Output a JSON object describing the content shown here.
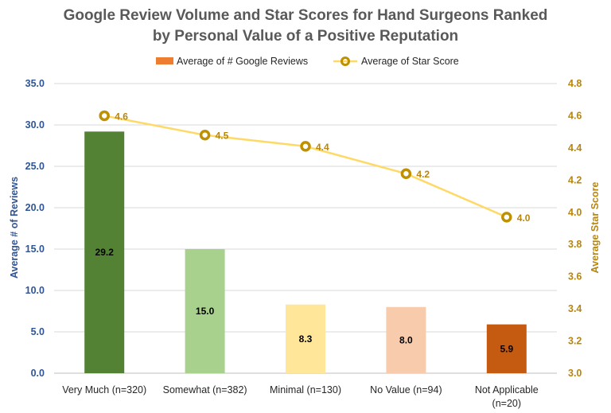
{
  "chart_data": {
    "type": "bar",
    "title": [
      "Google Review Volume and Star Scores for Hand Surgeons Ranked",
      "by Personal Value of a Positive Reputation"
    ],
    "categories": [
      [
        "Very Much (n=320)"
      ],
      [
        "Somewhat (n=382)"
      ],
      [
        "Minimal (n=130)"
      ],
      [
        "No Value (n=94)"
      ],
      [
        "Not Applicable",
        "(n=20)"
      ]
    ],
    "bar_colors": [
      "#548235",
      "#a9d18e",
      "#ffe699",
      "#f8cbad",
      "#c55a11"
    ],
    "legend_bar_color": "#ed7d31",
    "line_color": "#ffd966",
    "marker_color": "#bf9000",
    "left_axis_color": "#2f5597",
    "right_axis_color": "#b8860b",
    "series": [
      {
        "name": "Average of # Google Reviews",
        "type": "bar",
        "axis": "left",
        "values": [
          29.2,
          15.0,
          8.3,
          8.0,
          5.9
        ],
        "labels": [
          "29.2",
          "15.0",
          "8.3",
          "8.0",
          "5.9"
        ]
      },
      {
        "name": "Average of Star Score",
        "type": "line",
        "axis": "right",
        "values": [
          4.6,
          4.48,
          4.41,
          4.24,
          3.97
        ],
        "labels": [
          "4.6",
          "4.5",
          "4.4",
          "4.2",
          "4.0"
        ]
      }
    ],
    "left_axis": {
      "title": "Average # of Reviews",
      "min": 0,
      "max": 35,
      "ticks": [
        "0.0",
        "5.0",
        "10.0",
        "15.0",
        "20.0",
        "25.0",
        "30.0",
        "35.0"
      ]
    },
    "right_axis": {
      "title": "Average Star Score",
      "min": 3.0,
      "max": 4.8,
      "ticks": [
        "3.0",
        "3.2",
        "3.4",
        "3.6",
        "3.8",
        "4.0",
        "4.2",
        "4.4",
        "4.6",
        "4.8"
      ]
    },
    "legend": "top",
    "grid": true
  }
}
